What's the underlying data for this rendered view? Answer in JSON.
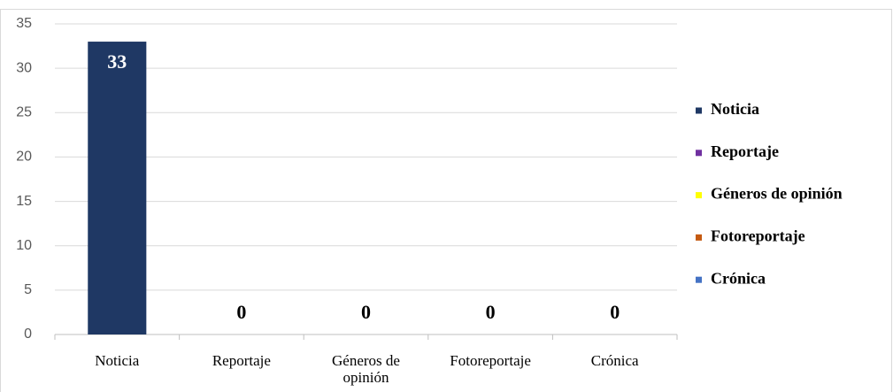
{
  "chart_data": {
    "type": "bar",
    "categories": [
      "Noticia",
      "Reportaje",
      "Géneros de opinión",
      "Fotoreportaje",
      "Crónica"
    ],
    "values": [
      33,
      0,
      0,
      0,
      0
    ],
    "colors": [
      "#1f3864",
      "#7030a0",
      "#ffff00",
      "#c55a11",
      "#4472c4"
    ],
    "ylim": [
      0,
      35
    ],
    "yticks": [
      0,
      5,
      10,
      15,
      20,
      25,
      30,
      35
    ],
    "grid": true,
    "legend": "right"
  }
}
